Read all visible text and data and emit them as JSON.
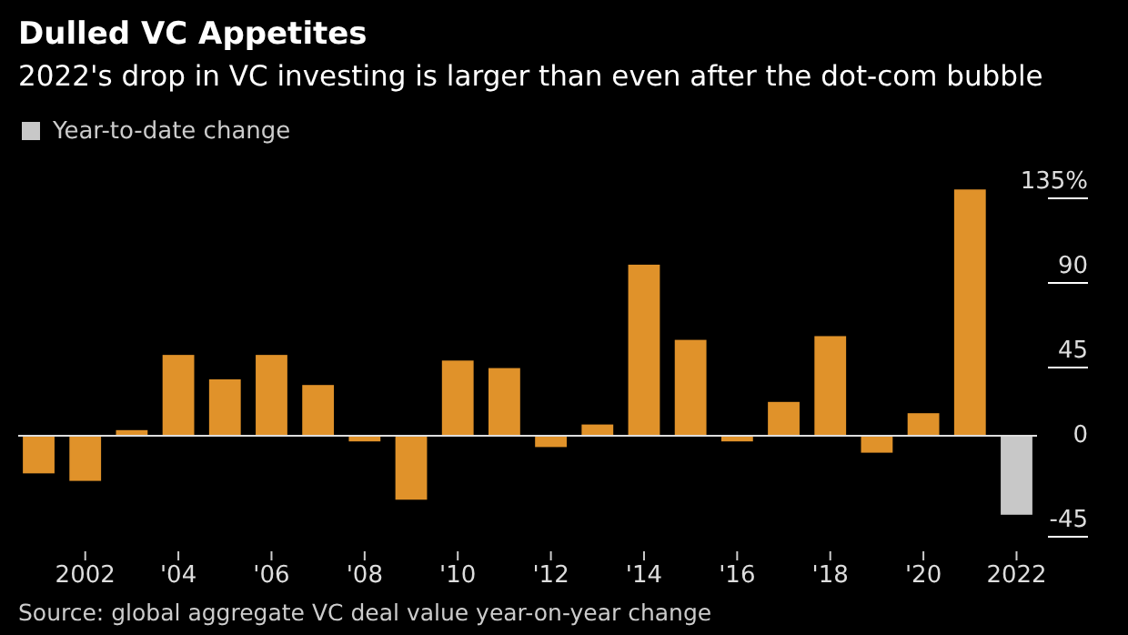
{
  "chart_data": {
    "type": "bar",
    "title": "Dulled VC Appetites",
    "subtitle": "2022's drop in VC investing is larger than even after the dot-com bubble",
    "categories": [
      null,
      "2002",
      null,
      "'04",
      null,
      "'06",
      null,
      "'08",
      null,
      "'10",
      null,
      "'12",
      null,
      "'14",
      null,
      "'16",
      null,
      "'18",
      null,
      "'20",
      null,
      "2022"
    ],
    "values": [
      -20,
      -24,
      3,
      43,
      30,
      43,
      27,
      -3,
      -34,
      40,
      36,
      -6,
      6,
      91,
      51,
      -3,
      18,
      53,
      -9,
      12,
      131,
      -42
    ],
    "colors": [
      "#e0922a",
      "#e0922a",
      "#e0922a",
      "#e0922a",
      "#e0922a",
      "#e0922a",
      "#e0922a",
      "#e0922a",
      "#e0922a",
      "#e0922a",
      "#e0922a",
      "#e0922a",
      "#e0922a",
      "#e0922a",
      "#e0922a",
      "#e0922a",
      "#e0922a",
      "#e0922a",
      "#e0922a",
      "#e0922a",
      "#e0922a",
      "#c8c8c8"
    ],
    "ylim": [
      -45,
      135
    ],
    "ref_lines": [
      {
        "axis": "y",
        "value": 0,
        "color": "#dddddd"
      }
    ],
    "yticks": [
      {
        "value": 135,
        "label": "135%"
      },
      90,
      45,
      0,
      -45
    ],
    "annotations": [
      "Year-to-date change",
      "Source: global aggregate VC deal value year-on-year change"
    ]
  }
}
